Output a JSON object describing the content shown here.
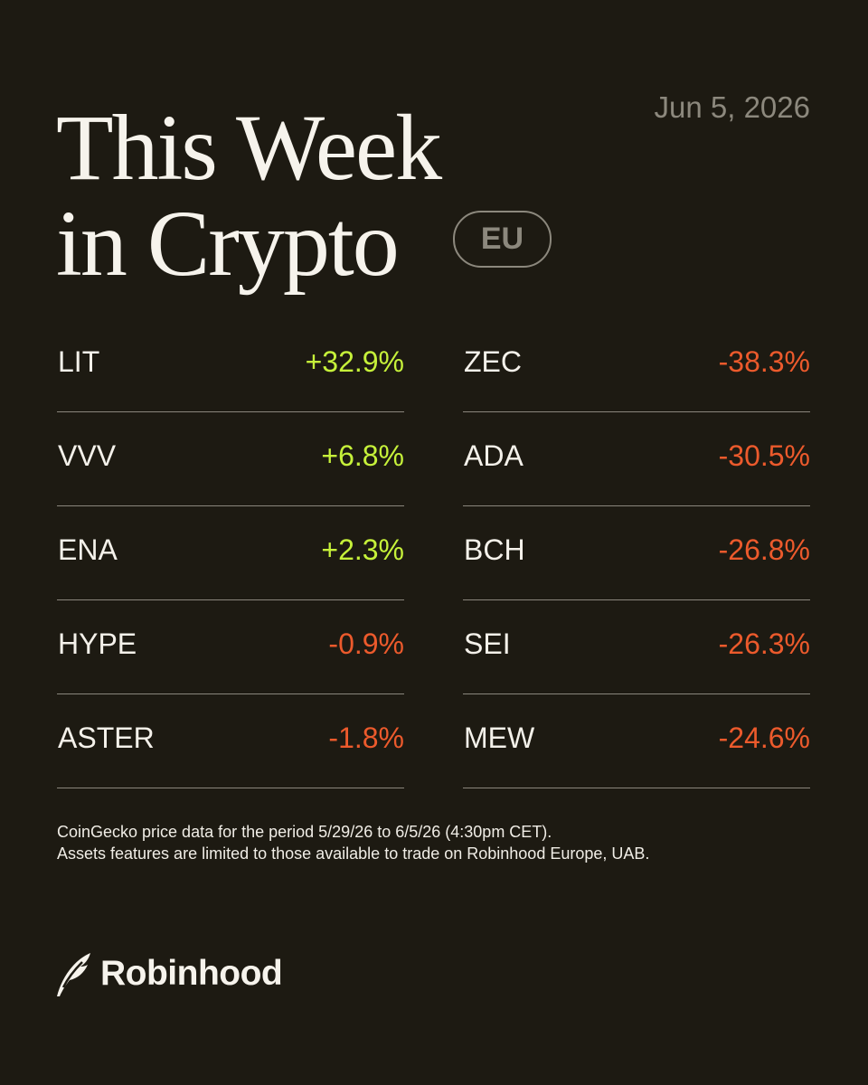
{
  "header": {
    "title_lines": [
      "This Week",
      "in Crypto"
    ],
    "badge": "EU",
    "date": "Jun 5, 2026"
  },
  "columns": [
    [
      {
        "ticker": "LIT",
        "change": "+32.9%"
      },
      {
        "ticker": "VVV",
        "change": "+6.8%"
      },
      {
        "ticker": "ENA",
        "change": "+2.3%"
      },
      {
        "ticker": "HYPE",
        "change": "-0.9%"
      },
      {
        "ticker": "ASTER",
        "change": "-1.8%"
      }
    ],
    [
      {
        "ticker": "ZEC",
        "change": "-38.3%"
      },
      {
        "ticker": "ADA",
        "change": "-30.5%"
      },
      {
        "ticker": "BCH",
        "change": "-26.8%"
      },
      {
        "ticker": "SEI",
        "change": "-26.3%"
      },
      {
        "ticker": "MEW",
        "change": "-24.6%"
      }
    ]
  ],
  "footnote": [
    "CoinGecko price data for the period 5/29/26 to 6/5/26 (4:30pm CET).",
    "Assets features are limited to those available to trade on Robinhood Europe, UAB."
  ],
  "brand": "Robinhood"
}
